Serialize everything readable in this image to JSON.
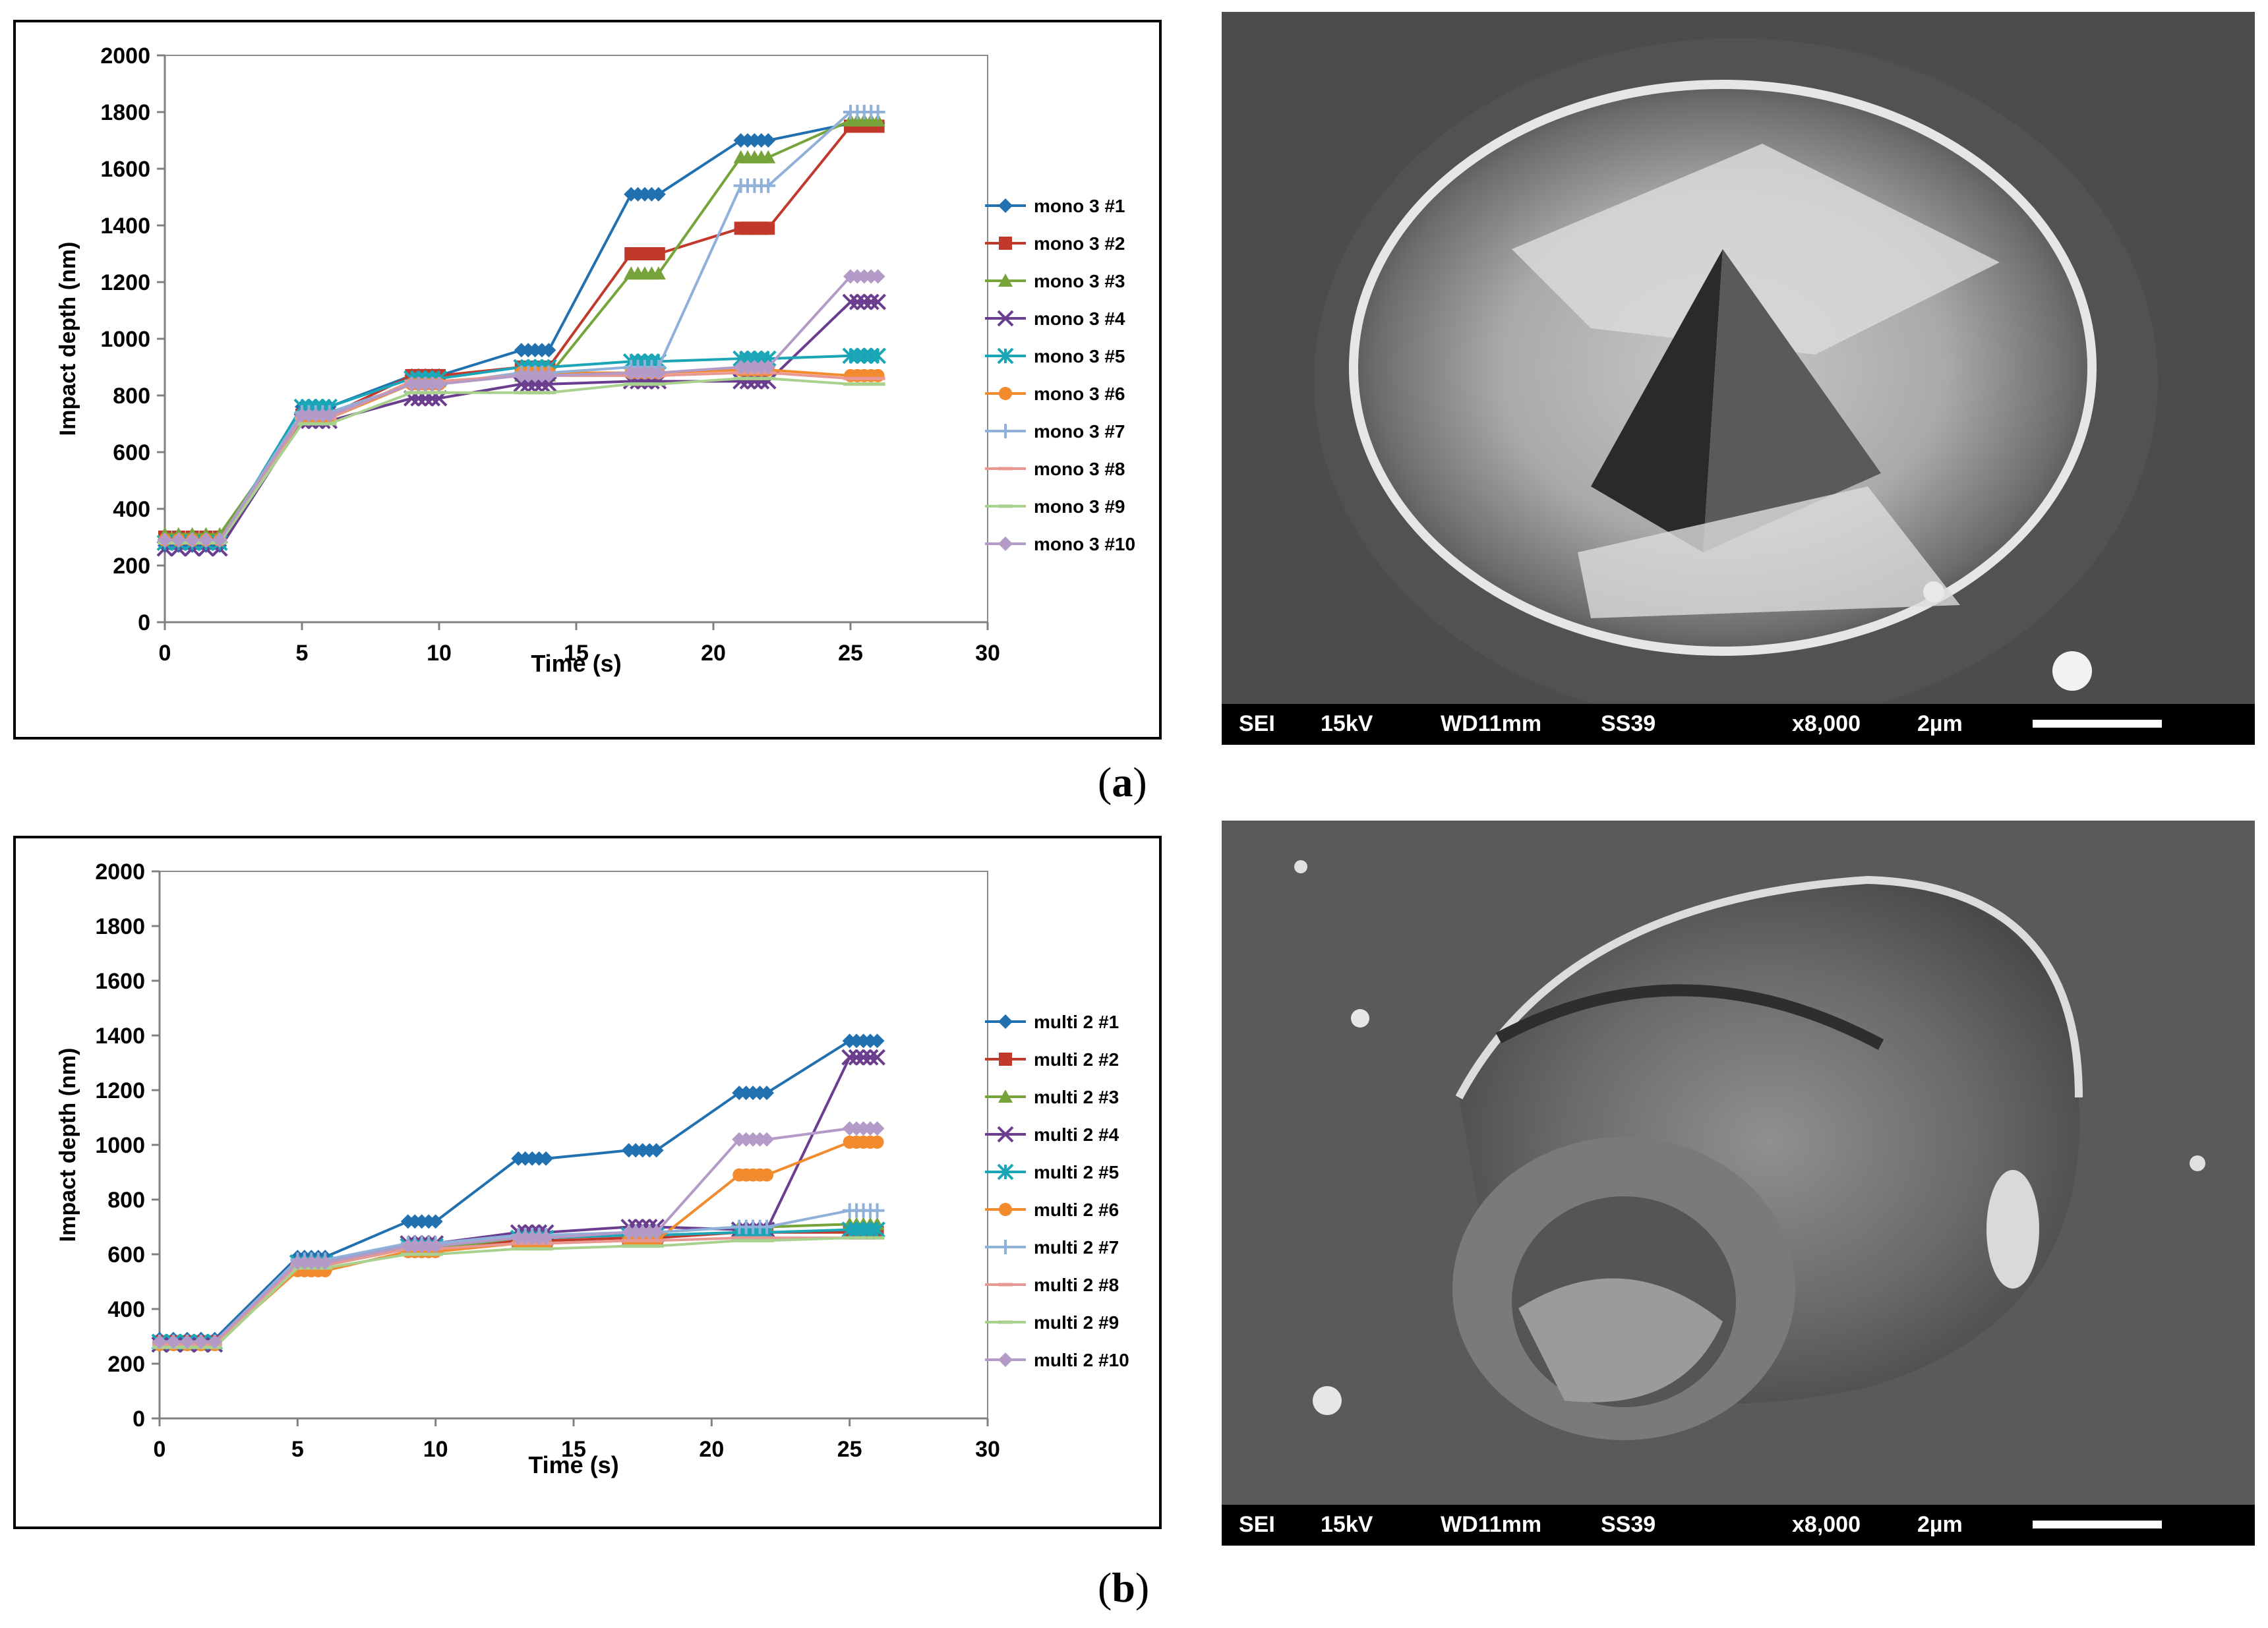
{
  "panels": [
    {
      "label_open": "(",
      "label_letter": "a",
      "label_close": ")",
      "chart_data": {
        "type": "line",
        "title": "",
        "xlabel": "Time (s)",
        "ylabel": "Impact depth (nm)",
        "xlim": [
          0,
          30
        ],
        "ylim": [
          0,
          2000
        ],
        "xticks": [
          0,
          5,
          10,
          15,
          20,
          25,
          30
        ],
        "yticks": [
          0,
          200,
          400,
          600,
          800,
          1000,
          1200,
          1400,
          1600,
          1800,
          2000
        ],
        "grid": false,
        "legend_position": "right",
        "x": [
          0,
          2,
          5,
          6,
          9,
          10,
          13,
          14,
          17,
          18,
          21,
          22,
          25,
          26
        ],
        "series": [
          {
            "name": "mono 3 #1",
            "color": "#2170b0",
            "marker": "diamond",
            "values": [
              270,
              270,
              760,
              760,
              870,
              870,
              960,
              960,
              1510,
              1510,
              1700,
              1700,
              1760,
              1760
            ]
          },
          {
            "name": "mono 3 #2",
            "color": "#c0392b",
            "marker": "square",
            "values": [
              300,
              300,
              730,
              730,
              870,
              870,
              900,
              900,
              1300,
              1300,
              1390,
              1390,
              1750,
              1750
            ]
          },
          {
            "name": "mono 3 #3",
            "color": "#77a33b",
            "marker": "triangle",
            "values": [
              310,
              310,
              720,
              720,
              850,
              850,
              870,
              870,
              1230,
              1230,
              1640,
              1640,
              1770,
              1770
            ]
          },
          {
            "name": "mono 3 #4",
            "color": "#6a3d8f",
            "marker": "x",
            "values": [
              260,
              260,
              710,
              710,
              790,
              790,
              840,
              840,
              850,
              850,
              850,
              850,
              1130,
              1130
            ]
          },
          {
            "name": "mono 3 #5",
            "color": "#1aa6b7",
            "marker": "star",
            "values": [
              280,
              280,
              760,
              760,
              860,
              860,
              900,
              900,
              920,
              920,
              930,
              930,
              940,
              940
            ]
          },
          {
            "name": "mono 3 #6",
            "color": "#f28a2e",
            "marker": "circle",
            "values": [
              290,
              290,
              720,
              720,
              840,
              840,
              880,
              880,
              880,
              880,
              890,
              890,
              870,
              870
            ]
          },
          {
            "name": "mono 3 #7",
            "color": "#8fb1d9",
            "marker": "plus",
            "values": [
              290,
              290,
              740,
              740,
              840,
              840,
              880,
              880,
              900,
              900,
              1540,
              1540,
              1800,
              1800
            ]
          },
          {
            "name": "mono 3 #8",
            "color": "#e89793",
            "marker": "dash",
            "values": [
              280,
              280,
              720,
              720,
              850,
              850,
              870,
              870,
              870,
              870,
              880,
              880,
              860,
              860
            ]
          },
          {
            "name": "mono 3 #9",
            "color": "#a9d18e",
            "marker": "dash",
            "values": [
              280,
              280,
              700,
              700,
              810,
              810,
              810,
              810,
              840,
              840,
              860,
              860,
              840,
              840
            ]
          },
          {
            "name": "mono 3 #10",
            "color": "#b49ac7",
            "marker": "diamond",
            "values": [
              290,
              290,
              730,
              730,
              840,
              840,
              870,
              870,
              880,
              880,
              900,
              900,
              1220,
              1220
            ]
          }
        ]
      },
      "sem_bar": {
        "detector": "SEI",
        "voltage": "15kV",
        "wd": "WD11mm",
        "spot": "SS39",
        "mag": "x8,000",
        "scale": "2µm"
      }
    },
    {
      "label_open": "(",
      "label_letter": "b",
      "label_close": ")",
      "chart_data": {
        "type": "line",
        "title": "",
        "xlabel": "Time (s)",
        "ylabel": "Impact depth (nm)",
        "xlim": [
          0,
          30
        ],
        "ylim": [
          0,
          2000
        ],
        "xticks": [
          0,
          5,
          10,
          15,
          20,
          25,
          30
        ],
        "yticks": [
          0,
          200,
          400,
          600,
          800,
          1000,
          1200,
          1400,
          1600,
          1800,
          2000
        ],
        "grid": false,
        "legend_position": "right",
        "x": [
          0,
          2,
          5,
          6,
          9,
          10,
          13,
          14,
          17,
          18,
          21,
          22,
          25,
          26
        ],
        "series": [
          {
            "name": "multi 2 #1",
            "color": "#2170b0",
            "marker": "diamond",
            "values": [
              290,
              290,
              590,
              590,
              720,
              720,
              950,
              950,
              980,
              980,
              1190,
              1190,
              1380,
              1380
            ]
          },
          {
            "name": "multi 2 #2",
            "color": "#c0392b",
            "marker": "square",
            "values": [
              280,
              280,
              560,
              560,
              620,
              620,
              650,
              650,
              660,
              660,
              680,
              680,
              680,
              680
            ]
          },
          {
            "name": "multi 2 #3",
            "color": "#77a33b",
            "marker": "triangle",
            "values": [
              270,
              270,
              560,
              560,
              620,
              620,
              660,
              660,
              680,
              680,
              700,
              700,
              710,
              710
            ]
          },
          {
            "name": "multi 2 #4",
            "color": "#6a3d8f",
            "marker": "x",
            "values": [
              270,
              270,
              570,
              570,
              640,
              640,
              680,
              680,
              700,
              700,
              690,
              690,
              1320,
              1320
            ]
          },
          {
            "name": "multi 2 #5",
            "color": "#1aa6b7",
            "marker": "star",
            "values": [
              280,
              280,
              570,
              570,
              630,
              630,
              660,
              660,
              670,
              670,
              680,
              680,
              690,
              690
            ]
          },
          {
            "name": "multi 2 #6",
            "color": "#f28a2e",
            "marker": "circle",
            "values": [
              270,
              270,
              540,
              540,
              610,
              610,
              640,
              640,
              650,
              650,
              890,
              890,
              1010,
              1010
            ]
          },
          {
            "name": "multi 2 #7",
            "color": "#8fb1d9",
            "marker": "plus",
            "values": [
              280,
              280,
              580,
              580,
              640,
              640,
              670,
              670,
              680,
              680,
              700,
              700,
              760,
              760
            ]
          },
          {
            "name": "multi 2 #8",
            "color": "#e89793",
            "marker": "dash",
            "values": [
              270,
              270,
              560,
              560,
              620,
              620,
              640,
              640,
              650,
              650,
              660,
              660,
              660,
              660
            ]
          },
          {
            "name": "multi 2 #9",
            "color": "#a9d18e",
            "marker": "dash",
            "values": [
              260,
              260,
              550,
              550,
              600,
              600,
              620,
              620,
              630,
              630,
              650,
              650,
              660,
              660
            ]
          },
          {
            "name": "multi 2 #10",
            "color": "#b49ac7",
            "marker": "diamond",
            "values": [
              280,
              280,
              570,
              570,
              630,
              630,
              660,
              660,
              680,
              680,
              1020,
              1020,
              1060,
              1060
            ]
          }
        ]
      },
      "sem_bar": {
        "detector": "SEI",
        "voltage": "15kV",
        "wd": "WD11mm",
        "spot": "SS39",
        "mag": "x8,000",
        "scale": "2µm"
      }
    }
  ]
}
